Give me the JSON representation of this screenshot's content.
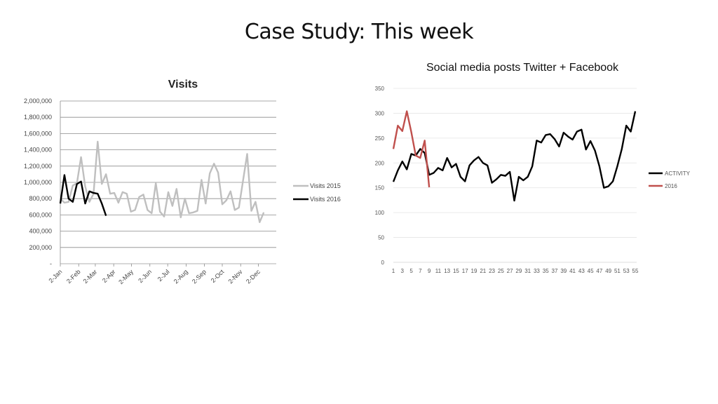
{
  "slide": {
    "title": "Case Study: This week"
  },
  "chart_data": [
    {
      "type": "line",
      "title": "Visits",
      "xlabel": "",
      "ylabel": "",
      "ylim": [
        0,
        2000000
      ],
      "yticks": [
        "-",
        "200,000",
        "400,000",
        "600,000",
        "800,000",
        "1,000,000",
        "1,200,000",
        "1,400,000",
        "1,600,000",
        "1,800,000",
        "2,000,000"
      ],
      "xticks": [
        "2-Jan",
        "2-Feb",
        "2-Mar",
        "2-Apr",
        "2-May",
        "2-Jun",
        "2-Jul",
        "2-Aug",
        "2-Sep",
        "2-Oct",
        "2-Nov",
        "2-Dec"
      ],
      "xtick_positions": [
        0,
        4.43,
        8.43,
        12.86,
        17.14,
        21.57,
        25.86,
        30.29,
        34.71,
        39,
        43.43,
        47.71
      ],
      "x_max": 52,
      "legend": "right",
      "series": [
        {
          "name": "Visits 2015",
          "color": "#bfbfbf",
          "values": [
            800000,
            750000,
            760000,
            960000,
            990000,
            1310000,
            950000,
            760000,
            860000,
            1500000,
            980000,
            1100000,
            860000,
            870000,
            750000,
            880000,
            860000,
            640000,
            660000,
            820000,
            850000,
            660000,
            620000,
            990000,
            640000,
            580000,
            880000,
            710000,
            920000,
            570000,
            800000,
            620000,
            630000,
            650000,
            1030000,
            740000,
            1110000,
            1230000,
            1120000,
            730000,
            780000,
            890000,
            660000,
            690000,
            1020000,
            1350000,
            650000,
            760000,
            510000,
            630000
          ]
        },
        {
          "name": "Visits 2016",
          "color": "#000000",
          "values": [
            740000,
            1090000,
            800000,
            760000,
            980000,
            1010000,
            740000,
            890000,
            870000,
            860000,
            740000,
            590000
          ]
        }
      ]
    },
    {
      "type": "line",
      "title": "Social media posts Twitter + Facebook",
      "xlabel": "",
      "ylabel": "",
      "ylim": [
        0,
        350
      ],
      "yticks": [
        "0",
        "50",
        "100",
        "150",
        "200",
        "250",
        "300",
        "350"
      ],
      "xticks": [
        "1",
        "3",
        "5",
        "7",
        "9",
        "11",
        "13",
        "15",
        "17",
        "19",
        "21",
        "23",
        "25",
        "27",
        "29",
        "31",
        "33",
        "35",
        "37",
        "39",
        "41",
        "43",
        "45",
        "47",
        "49",
        "51",
        "53",
        "55"
      ],
      "x_min": 1,
      "x_max": 55,
      "legend": "right",
      "series": [
        {
          "name": "ACTIVITY",
          "color": "#000000",
          "values": [
            162,
            185,
            203,
            187,
            218,
            215,
            228,
            220,
            176,
            180,
            190,
            185,
            210,
            191,
            198,
            172,
            163,
            195,
            205,
            212,
            200,
            195,
            160,
            167,
            176,
            174,
            182,
            124,
            172,
            165,
            172,
            193,
            245,
            241,
            256,
            258,
            248,
            233,
            261,
            253,
            247,
            263,
            267,
            227,
            244,
            225,
            193,
            150,
            153,
            163,
            193,
            228,
            275,
            263,
            304
          ]
        },
        {
          "name": "2016",
          "color": "#c0504d",
          "values": [
            228,
            275,
            264,
            304,
            262,
            215,
            210,
            245,
            151
          ]
        }
      ]
    }
  ]
}
